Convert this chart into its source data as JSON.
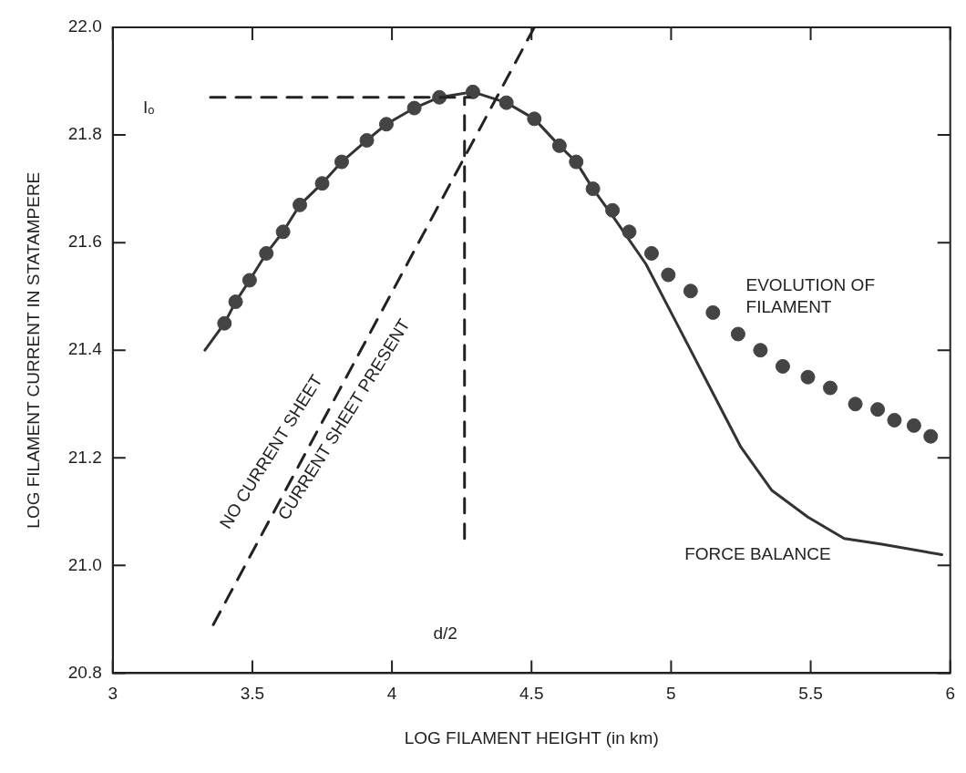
{
  "chart_data": {
    "type": "line",
    "xlabel": "LOG FILAMENT HEIGHT (in km)",
    "ylabel": "LOG FILAMENT CURRENT IN STATAMPERE",
    "xlim": [
      3,
      6
    ],
    "xticks": [
      3,
      3.5,
      4,
      4.5,
      5,
      5.5,
      6
    ],
    "ylim": [
      20.8,
      22.0
    ],
    "yticks": [
      20.8,
      {
        "value": 21,
        "label": "21.0"
      },
      21.2,
      21.4,
      21.6,
      21.8,
      {
        "value": 22,
        "label": "22.0"
      }
    ],
    "grid": false,
    "series": [
      {
        "name": "FORCE BALANCE",
        "color": "#333333",
        "line_style": "solid",
        "marker": "none",
        "x": [
          3.33,
          3.4,
          3.44,
          3.49,
          3.55,
          3.61,
          3.67,
          3.75,
          3.82,
          3.91,
          3.98,
          4.08,
          4.17,
          4.29,
          4.41,
          4.51,
          4.6,
          4.66,
          4.72,
          4.79,
          4.91,
          5.02,
          5.14,
          5.25,
          5.36,
          5.49,
          5.62,
          5.75,
          5.97
        ],
        "values": [
          21.4,
          21.45,
          21.49,
          21.53,
          21.58,
          21.62,
          21.67,
          21.71,
          21.75,
          21.79,
          21.82,
          21.85,
          21.87,
          21.88,
          21.86,
          21.83,
          21.78,
          21.75,
          21.7,
          21.65,
          21.56,
          21.45,
          21.33,
          21.22,
          21.14,
          21.09,
          21.05,
          21.04,
          21.02
        ]
      },
      {
        "type": "scatter",
        "name": "EVOLUTION OF FILAMENT",
        "color": "#444444",
        "marker": "circle",
        "x": [
          3.4,
          3.44,
          3.49,
          3.55,
          3.61,
          3.67,
          3.75,
          3.82,
          3.91,
          3.98,
          4.08,
          4.17,
          4.29,
          4.41,
          4.51,
          4.6,
          4.66,
          4.72,
          4.79,
          4.85,
          4.93,
          4.99,
          5.07,
          5.15,
          5.24,
          5.32,
          5.4,
          5.49,
          5.57,
          5.66,
          5.74,
          5.8,
          5.87,
          5.93
        ],
        "values": [
          21.45,
          21.49,
          21.53,
          21.58,
          21.62,
          21.67,
          21.71,
          21.75,
          21.79,
          21.82,
          21.85,
          21.87,
          21.88,
          21.86,
          21.83,
          21.78,
          21.75,
          21.7,
          21.66,
          21.62,
          21.58,
          21.54,
          21.51,
          21.47,
          21.43,
          21.4,
          21.37,
          21.35,
          21.33,
          21.3,
          21.29,
          21.27,
          21.26,
          21.24
        ]
      },
      {
        "type": "line",
        "color": "#222222",
        "line_style": "dashed",
        "marker": "none",
        "x": [
          3.36,
          4.51
        ],
        "values": [
          20.89,
          22.0
        ]
      },
      {
        "type": "line",
        "color": "#222222",
        "line_style": "dashed",
        "marker": "none",
        "x": [
          3.35,
          4.28
        ],
        "values": [
          21.87,
          21.87
        ]
      },
      {
        "type": "line",
        "color": "#222222",
        "line_style": "dashed",
        "marker": "none",
        "x": [
          4.26,
          4.26
        ],
        "values": [
          21.05,
          21.87
        ]
      }
    ],
    "annotations": [
      "Iₒ",
      "d/2",
      "NO CURRENT SHEET",
      "CURRENT SHEET PRESENT"
    ]
  }
}
